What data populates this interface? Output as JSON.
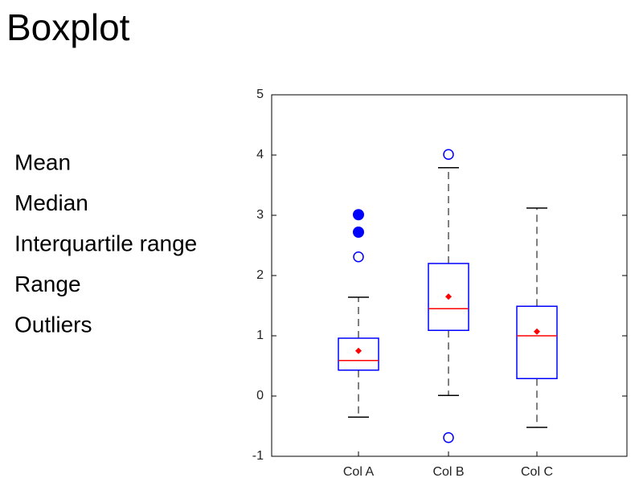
{
  "title": "Boxplot",
  "chart_data": {
    "type": "box",
    "annotations": [
      "Mean",
      "Median",
      "Interquartile range",
      "Range",
      "Outliers"
    ],
    "categories": [
      "Col A",
      "Col B",
      "Col C"
    ],
    "boxes": [
      {
        "whisker_low": -0.35,
        "q1": 0.43,
        "median": 0.59,
        "q3": 0.96,
        "whisker_high": 1.64,
        "mean": 0.75,
        "outliers": [
          2.31
        ],
        "extreme_outliers": [
          3.01,
          2.72
        ]
      },
      {
        "whisker_low": 0.01,
        "q1": 1.09,
        "median": 1.45,
        "q3": 2.2,
        "whisker_high": 3.79,
        "mean": 1.65,
        "outliers": [
          4.01,
          -0.69
        ],
        "extreme_outliers": []
      },
      {
        "whisker_low": -0.52,
        "q1": 0.29,
        "median": 1.0,
        "q3": 1.49,
        "whisker_high": 3.12,
        "mean": 1.07,
        "outliers": [],
        "extreme_outliers": []
      }
    ],
    "box_color": "#0000ff",
    "median_color": "#ff0000",
    "mean_color": "#ff0000",
    "whisker_color": "#000000",
    "outlier_color": "#0000ff",
    "ylim": [
      -1,
      5
    ],
    "yticks": [
      -1,
      0,
      1,
      2,
      3,
      4,
      5
    ]
  }
}
